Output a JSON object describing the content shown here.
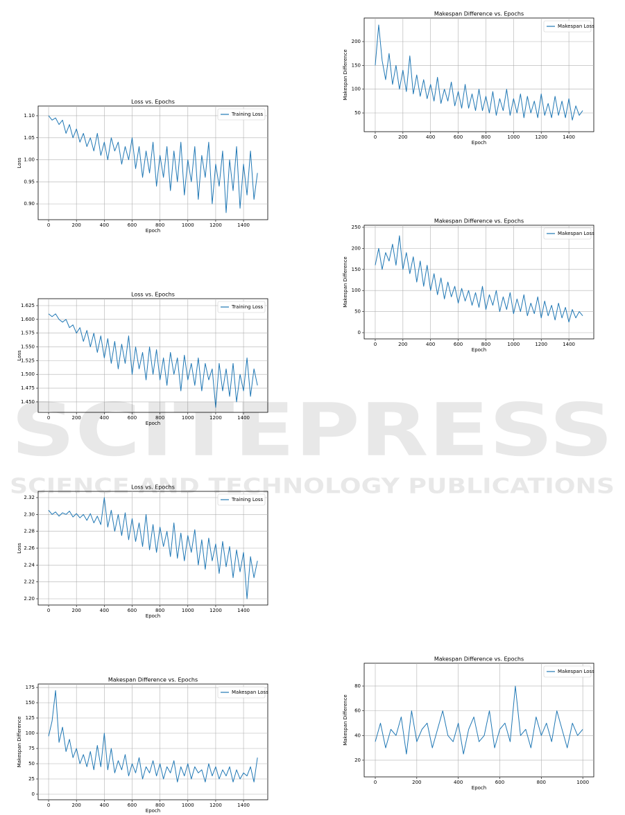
{
  "watermark": {
    "title": "SCITEPRESS",
    "subtitle": "SCIENCE AND TECHNOLOGY PUBLICATIONS"
  },
  "chart_data": [
    {
      "type": "line",
      "title": "Loss vs. Epochs",
      "x_label": "Epoch",
      "y_label": "Loss",
      "grid": true,
      "legend": "upper right",
      "x": [
        0,
        25,
        50,
        75,
        100,
        125,
        150,
        175,
        200,
        225,
        250,
        275,
        300,
        325,
        350,
        375,
        400,
        425,
        450,
        475,
        500,
        525,
        550,
        575,
        600,
        625,
        650,
        675,
        700,
        725,
        750,
        775,
        800,
        825,
        850,
        875,
        900,
        925,
        950,
        975,
        1000,
        1025,
        1050,
        1075,
        1100,
        1125,
        1150,
        1175,
        1200,
        1225,
        1250,
        1275,
        1300,
        1325,
        1350,
        1375,
        1400,
        1425,
        1450,
        1475,
        1500
      ],
      "series": [
        {
          "name": "Training Loss",
          "color": "#1f77b4",
          "values": [
            1.1,
            1.09,
            1.095,
            1.08,
            1.09,
            1.06,
            1.08,
            1.05,
            1.07,
            1.04,
            1.06,
            1.03,
            1.05,
            1.02,
            1.06,
            1.01,
            1.04,
            1.0,
            1.05,
            1.02,
            1.04,
            0.99,
            1.03,
            1.0,
            1.05,
            0.98,
            1.03,
            0.96,
            1.02,
            0.97,
            1.04,
            0.94,
            1.01,
            0.96,
            1.03,
            0.93,
            1.02,
            0.95,
            1.04,
            0.92,
            1.0,
            0.95,
            1.03,
            0.91,
            1.01,
            0.96,
            1.04,
            0.9,
            0.99,
            0.94,
            1.02,
            0.88,
            1.0,
            0.93,
            1.03,
            0.89,
            0.99,
            0.92,
            1.02,
            0.91,
            0.97
          ]
        }
      ],
      "xlim": [
        -75,
        1574
      ],
      "xticks": [
        0,
        200,
        400,
        600,
        800,
        1000,
        1200,
        1400
      ],
      "ylim": [
        0.864,
        1.122
      ],
      "yticks": [
        {
          "value": 0.9,
          "label": "0.90"
        },
        0.95,
        {
          "value": 1.0,
          "label": "1.00"
        },
        1.05,
        {
          "value": 1.1,
          "label": "1.10"
        }
      ]
    },
    {
      "type": "line",
      "title": "Loss vs. Epochs",
      "x_label": "Epoch",
      "y_label": "Loss",
      "grid": true,
      "legend": "upper right",
      "x": [
        0,
        25,
        50,
        75,
        100,
        125,
        150,
        175,
        200,
        225,
        250,
        275,
        300,
        325,
        350,
        375,
        400,
        425,
        450,
        475,
        500,
        525,
        550,
        575,
        600,
        625,
        650,
        675,
        700,
        725,
        750,
        775,
        800,
        825,
        850,
        875,
        900,
        925,
        950,
        975,
        1000,
        1025,
        1050,
        1075,
        1100,
        1125,
        1150,
        1175,
        1200,
        1225,
        1250,
        1275,
        1300,
        1325,
        1350,
        1375,
        1400,
        1425,
        1450,
        1475,
        1500
      ],
      "series": [
        {
          "name": "Training Loss",
          "color": "#1f77b4",
          "values": [
            1.61,
            1.605,
            1.61,
            1.6,
            1.595,
            1.6,
            1.585,
            1.59,
            1.575,
            1.585,
            1.56,
            1.58,
            1.55,
            1.575,
            1.54,
            1.57,
            1.53,
            1.565,
            1.52,
            1.56,
            1.51,
            1.555,
            1.52,
            1.57,
            1.5,
            1.55,
            1.51,
            1.54,
            1.49,
            1.55,
            1.5,
            1.545,
            1.49,
            1.53,
            1.48,
            1.54,
            1.5,
            1.53,
            1.47,
            1.535,
            1.49,
            1.52,
            1.48,
            1.53,
            1.47,
            1.52,
            1.49,
            1.51,
            1.44,
            1.52,
            1.47,
            1.51,
            1.46,
            1.52,
            1.45,
            1.5,
            1.47,
            1.53,
            1.46,
            1.51,
            1.48
          ]
        }
      ],
      "xlim": [
        -75,
        1574
      ],
      "xticks": [
        0,
        200,
        400,
        600,
        800,
        1000,
        1200,
        1400
      ],
      "ylim": [
        1.431,
        1.6376
      ],
      "yticks": [
        {
          "value": 1.45,
          "label": "1.450"
        },
        1.475,
        {
          "value": 1.5,
          "label": "1.500"
        },
        1.525,
        {
          "value": 1.55,
          "label": "1.550"
        },
        1.575,
        {
          "value": 1.6,
          "label": "1.600"
        },
        1.625
      ]
    },
    {
      "type": "line",
      "title": "Loss vs. Epochs",
      "x_label": "Epoch",
      "y_label": "Loss",
      "grid": true,
      "legend": "upper right",
      "x": [
        0,
        25,
        50,
        75,
        100,
        125,
        150,
        175,
        200,
        225,
        250,
        275,
        300,
        325,
        350,
        375,
        400,
        425,
        450,
        475,
        500,
        525,
        550,
        575,
        600,
        625,
        650,
        675,
        700,
        725,
        750,
        775,
        800,
        825,
        850,
        875,
        900,
        925,
        950,
        975,
        1000,
        1025,
        1050,
        1075,
        1100,
        1125,
        1150,
        1175,
        1200,
        1225,
        1250,
        1275,
        1300,
        1325,
        1350,
        1375,
        1400,
        1425,
        1450,
        1475,
        1500
      ],
      "series": [
        {
          "name": "Training Loss",
          "color": "#1f77b4",
          "values": [
            2.305,
            2.3,
            2.303,
            2.298,
            2.302,
            2.3,
            2.304,
            2.297,
            2.301,
            2.296,
            2.3,
            2.293,
            2.301,
            2.29,
            2.298,
            2.288,
            2.32,
            2.285,
            2.305,
            2.28,
            2.3,
            2.275,
            2.302,
            2.27,
            2.295,
            2.268,
            2.29,
            2.262,
            2.3,
            2.258,
            2.288,
            2.255,
            2.285,
            2.262,
            2.28,
            2.25,
            2.29,
            2.248,
            2.278,
            2.245,
            2.275,
            2.255,
            2.282,
            2.24,
            2.27,
            2.235,
            2.272,
            2.245,
            2.265,
            2.23,
            2.268,
            2.238,
            2.262,
            2.225,
            2.258,
            2.232,
            2.255,
            2.2,
            2.25,
            2.225,
            2.245
          ]
        }
      ],
      "xlim": [
        -75,
        1574
      ],
      "xticks": [
        0,
        200,
        400,
        600,
        800,
        1000,
        1200,
        1400
      ],
      "ylim": [
        2.1926,
        2.3274
      ],
      "yticks": [
        {
          "value": 2.2,
          "label": "2.20"
        },
        2.22,
        2.24,
        2.26,
        2.28,
        {
          "value": 2.3,
          "label": "2.30"
        },
        2.32
      ]
    },
    {
      "type": "line",
      "title": "Makespan Difference vs. Epochs",
      "x_label": "Epoch",
      "y_label": "Makespan Difference",
      "grid": true,
      "legend": "upper right",
      "x": [
        0,
        25,
        50,
        75,
        100,
        125,
        150,
        175,
        200,
        225,
        250,
        275,
        300,
        325,
        350,
        375,
        400,
        425,
        450,
        475,
        500,
        525,
        550,
        575,
        600,
        625,
        650,
        675,
        700,
        725,
        750,
        775,
        800,
        825,
        850,
        875,
        900,
        925,
        950,
        975,
        1000,
        1025,
        1050,
        1075,
        1100,
        1125,
        1150,
        1175,
        1200,
        1225,
        1250,
        1275,
        1300,
        1325,
        1350,
        1375,
        1400,
        1425,
        1450,
        1475,
        1500
      ],
      "series": [
        {
          "name": "Makespan Loss",
          "color": "#1f77b4",
          "values": [
            95,
            120,
            170,
            85,
            110,
            70,
            90,
            60,
            75,
            50,
            65,
            45,
            70,
            40,
            80,
            45,
            100,
            40,
            75,
            35,
            55,
            40,
            65,
            30,
            50,
            35,
            60,
            25,
            45,
            35,
            55,
            30,
            50,
            25,
            45,
            35,
            55,
            20,
            45,
            30,
            50,
            25,
            45,
            35,
            40,
            20,
            50,
            30,
            45,
            25,
            40,
            30,
            45,
            20,
            40,
            25,
            35,
            30,
            45,
            20,
            60
          ]
        }
      ],
      "xlim": [
        -75,
        1574
      ],
      "xticks": [
        0,
        200,
        400,
        600,
        800,
        1000,
        1200,
        1400
      ],
      "ylim": [
        -9.1,
        180.7
      ],
      "yticks": [
        0,
        25,
        50,
        75,
        100,
        125,
        150,
        175
      ]
    },
    {
      "type": "line",
      "title": "Makespan Difference vs. Epochs",
      "x_label": "Epoch",
      "y_label": "Makespan Difference",
      "grid": true,
      "legend": "upper right",
      "x": [
        0,
        25,
        50,
        75,
        100,
        125,
        150,
        175,
        200,
        225,
        250,
        275,
        300,
        325,
        350,
        375,
        400,
        425,
        450,
        475,
        500,
        525,
        550,
        575,
        600,
        625,
        650,
        675,
        700,
        725,
        750,
        775,
        800,
        825,
        850,
        875,
        900,
        925,
        950,
        975,
        1000,
        1025,
        1050,
        1075,
        1100,
        1125,
        1150,
        1175,
        1200,
        1225,
        1250,
        1275,
        1300,
        1325,
        1350,
        1375,
        1400,
        1425,
        1450,
        1475,
        1500
      ],
      "series": [
        {
          "name": "Makespan Loss",
          "color": "#1f77b4",
          "values": [
            150,
            235,
            160,
            120,
            175,
            110,
            150,
            100,
            140,
            95,
            170,
            90,
            130,
            85,
            120,
            80,
            110,
            75,
            125,
            70,
            100,
            75,
            115,
            65,
            95,
            60,
            110,
            60,
            90,
            55,
            100,
            55,
            85,
            50,
            95,
            45,
            80,
            55,
            100,
            45,
            80,
            50,
            90,
            40,
            85,
            50,
            75,
            40,
            90,
            45,
            70,
            40,
            85,
            45,
            75,
            40,
            80,
            35,
            65,
            45,
            55
          ]
        }
      ],
      "xlim": [
        -80,
        1580
      ],
      "xticks": [
        0,
        200,
        400,
        600,
        800,
        1000,
        1200,
        1400
      ],
      "ylim": [
        10.7,
        249.5
      ],
      "yticks": [
        50,
        100,
        150,
        200
      ]
    },
    {
      "type": "line",
      "title": "Makespan Difference vs. Epochs",
      "x_label": "Epoch",
      "y_label": "Makespan Difference",
      "grid": true,
      "legend": "upper right",
      "x": [
        0,
        25,
        50,
        75,
        100,
        125,
        150,
        175,
        200,
        225,
        250,
        275,
        300,
        325,
        350,
        375,
        400,
        425,
        450,
        475,
        500,
        525,
        550,
        575,
        600,
        625,
        650,
        675,
        700,
        725,
        750,
        775,
        800,
        825,
        850,
        875,
        900,
        925,
        950,
        975,
        1000,
        1025,
        1050,
        1075,
        1100,
        1125,
        1150,
        1175,
        1200,
        1225,
        1250,
        1275,
        1300,
        1325,
        1350,
        1375,
        1400,
        1425,
        1450,
        1475,
        1500
      ],
      "series": [
        {
          "name": "Makespan Loss",
          "color": "#1f77b4",
          "values": [
            160,
            200,
            150,
            190,
            170,
            210,
            160,
            230,
            150,
            190,
            140,
            180,
            120,
            170,
            110,
            160,
            100,
            140,
            90,
            130,
            80,
            120,
            85,
            110,
            70,
            105,
            75,
            100,
            65,
            95,
            60,
            110,
            55,
            90,
            65,
            100,
            50,
            85,
            55,
            95,
            45,
            80,
            50,
            90,
            40,
            70,
            45,
            85,
            35,
            75,
            40,
            65,
            30,
            70,
            35,
            60,
            25,
            55,
            35,
            50,
            40
          ]
        }
      ],
      "xlim": [
        -80,
        1580
      ],
      "xticks": [
        0,
        200,
        400,
        600,
        800,
        1000,
        1200,
        1400
      ],
      "ylim": [
        -14.8,
        254.9
      ],
      "yticks": [
        0,
        50,
        100,
        150,
        200,
        250
      ]
    },
    {
      "type": "line",
      "title": "Makespan Difference vs. Epochs",
      "x_label": "Epoch",
      "y_label": "Makespan Difference",
      "grid": true,
      "legend": "upper right",
      "x": [
        0,
        25,
        50,
        75,
        100,
        125,
        150,
        175,
        200,
        225,
        250,
        275,
        300,
        325,
        350,
        375,
        400,
        425,
        450,
        475,
        500,
        525,
        550,
        575,
        600,
        625,
        650,
        675,
        700,
        725,
        750,
        775,
        800,
        825,
        850,
        875,
        900,
        925,
        950,
        975,
        1000
      ],
      "series": [
        {
          "name": "Makespan Loss",
          "color": "#1f77b4",
          "values": [
            35,
            50,
            30,
            45,
            40,
            55,
            25,
            60,
            35,
            45,
            50,
            30,
            45,
            60,
            40,
            35,
            50,
            25,
            45,
            55,
            35,
            40,
            60,
            30,
            45,
            50,
            35,
            80,
            40,
            45,
            30,
            55,
            40,
            50,
            35,
            60,
            45,
            30,
            50,
            40,
            45
          ]
        }
      ],
      "xlim": [
        -53.5,
        1053
      ],
      "xticks": [
        0,
        200,
        400,
        600,
        800,
        1000
      ],
      "ylim": [
        6.5,
        98.5
      ],
      "yticks": [
        20,
        40,
        60,
        80
      ]
    }
  ]
}
